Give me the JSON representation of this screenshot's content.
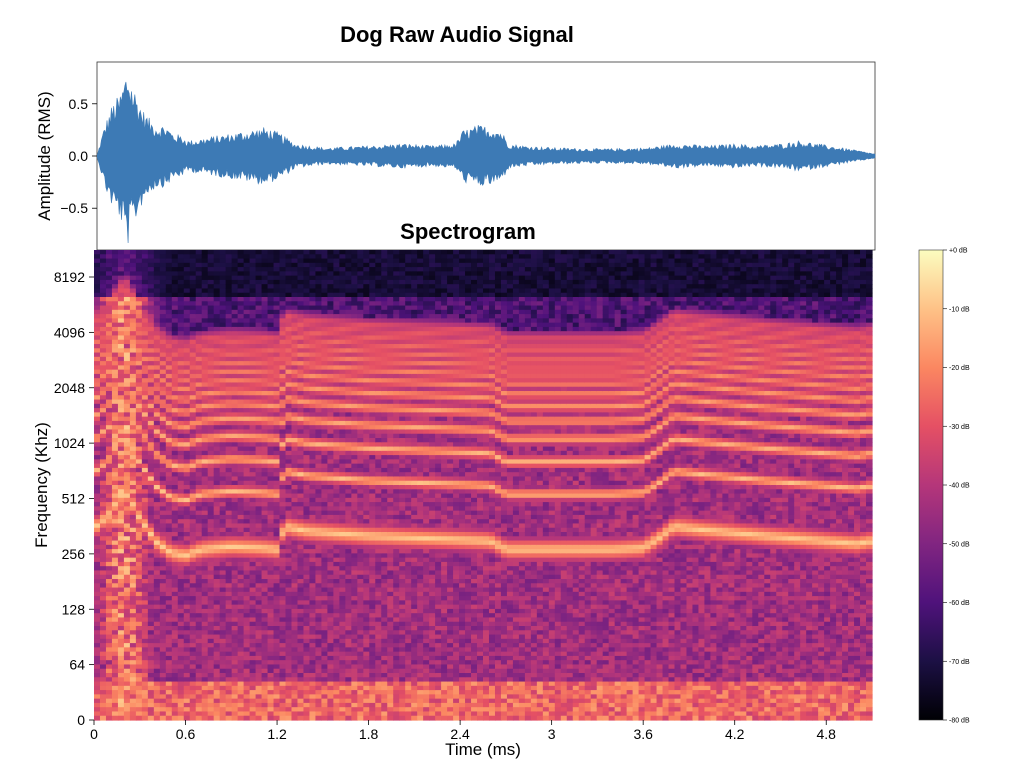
{
  "chart_data": [
    {
      "type": "line",
      "title": "Dog Raw Audio Signal",
      "ylabel": "Amplitude (RMS)",
      "xlabel": "",
      "ylim": [
        -0.9,
        0.9
      ],
      "xlim": [
        0,
        5.1
      ],
      "yticks": [
        "0.5",
        "0.0",
        "−0.5"
      ],
      "ytick_values": [
        0.5,
        0.0,
        -0.5
      ],
      "envelope": {
        "x": [
          0,
          0.05,
          0.1,
          0.15,
          0.2,
          0.22,
          0.3,
          0.35,
          0.4,
          0.45,
          0.5,
          0.55,
          0.6,
          0.8,
          1.0,
          1.1,
          1.2,
          1.3,
          1.5,
          1.8,
          2.0,
          2.2,
          2.35,
          2.4,
          2.5,
          2.6,
          2.65,
          2.7,
          2.8,
          3.0,
          3.3,
          3.6,
          3.7,
          3.8,
          4.0,
          4.2,
          4.3,
          4.5,
          4.6,
          4.8,
          5.0,
          5.1
        ],
        "amp": [
          0.0,
          0.3,
          0.5,
          0.6,
          0.88,
          0.75,
          0.45,
          0.35,
          0.3,
          0.3,
          0.22,
          0.2,
          0.15,
          0.2,
          0.25,
          0.28,
          0.22,
          0.12,
          0.08,
          0.1,
          0.12,
          0.1,
          0.12,
          0.25,
          0.3,
          0.28,
          0.25,
          0.12,
          0.1,
          0.08,
          0.07,
          0.08,
          0.1,
          0.12,
          0.1,
          0.12,
          0.1,
          0.12,
          0.15,
          0.1,
          0.05,
          0.02
        ]
      },
      "color": "#3d7ab5"
    },
    {
      "type": "heatmap",
      "title": "Spectrogram",
      "xlabel": "Time (ms)",
      "ylabel": "Frequency (Khz)",
      "xticks": [
        "0",
        "0.6",
        "1.2",
        "1.8",
        "2.4",
        "3",
        "3.6",
        "4.2",
        "4.8"
      ],
      "xtick_values": [
        0,
        0.6,
        1.2,
        1.8,
        2.4,
        3.0,
        3.6,
        4.2,
        4.8
      ],
      "xlim": [
        0,
        5.1
      ],
      "yticks": [
        "0",
        "64",
        "128",
        "256",
        "512",
        "1024",
        "2048",
        "4096",
        "8192"
      ],
      "ytick_values": [
        0,
        64,
        128,
        256,
        512,
        1024,
        2048,
        4096,
        8192
      ],
      "fundamental_hz": {
        "x": [
          0,
          0.1,
          0.2,
          0.3,
          0.4,
          0.5,
          0.6,
          0.7,
          0.9,
          1.1,
          1.2,
          1.25,
          1.4,
          1.8,
          2.2,
          2.6,
          2.7,
          3.0,
          3.4,
          3.6,
          3.7,
          3.8,
          4.0,
          4.4,
          4.8,
          5.0,
          5.1
        ],
        "f": [
          350,
          420,
          560,
          400,
          300,
          260,
          250,
          270,
          280,
          275,
          270,
          360,
          340,
          320,
          310,
          300,
          270,
          270,
          270,
          275,
          310,
          360,
          345,
          320,
          300,
          290,
          300
        ]
      },
      "colorbar": {
        "range_db": [
          -80,
          0
        ],
        "ticks": [
          "+0 dB",
          "-10 dB",
          "-20 dB",
          "-30 dB",
          "-40 dB",
          "-50 dB",
          "-60 dB",
          "-70 dB",
          "-80 dB"
        ],
        "colormap": [
          "#000004",
          "#1c1044",
          "#4f127b",
          "#812581",
          "#b5367a",
          "#e55064",
          "#fb8761",
          "#fec287",
          "#fcfdbf"
        ]
      }
    }
  ]
}
